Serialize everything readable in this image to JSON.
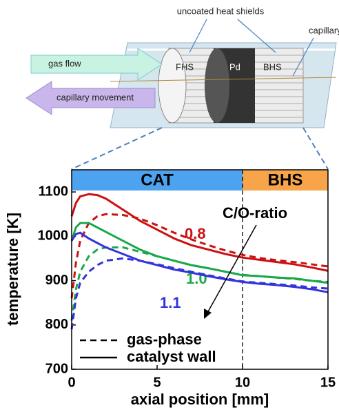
{
  "diagram": {
    "top_label": "uncoated heat shields",
    "tube_label": "capillary",
    "flow_label": "gas flow",
    "movement_label": "capillary movement",
    "front_shield": "FHS",
    "catalyst": "Pd",
    "back_shield": "BHS"
  },
  "chart_data": {
    "type": "line",
    "xlabel": "axial position [mm]",
    "ylabel": "temperature [K]",
    "x": [
      0,
      0.25,
      0.5,
      1,
      1.5,
      2,
      3,
      4,
      5,
      6,
      7,
      8,
      9,
      10,
      11,
      12,
      13,
      14,
      15
    ],
    "series": [
      {
        "label": "0.8",
        "color": "#cc1111",
        "style": "solid",
        "values": [
          1045,
          1075,
          1090,
          1095,
          1093,
          1085,
          1060,
          1035,
          1015,
          995,
          980,
          970,
          960,
          952,
          947,
          942,
          937,
          930,
          922
        ]
      },
      {
        "color": "#cc1111",
        "style": "dashed",
        "values": [
          860,
          940,
          990,
          1030,
          1045,
          1050,
          1048,
          1040,
          1025,
          1008,
          993,
          980,
          968,
          958,
          951,
          946,
          942,
          937,
          932
        ]
      },
      {
        "label": "1.0",
        "color": "#1aa84a",
        "style": "solid",
        "values": [
          990,
          1020,
          1030,
          1030,
          1020,
          1010,
          990,
          970,
          955,
          945,
          935,
          928,
          920,
          912,
          910,
          907,
          905,
          900,
          895
        ]
      },
      {
        "color": "#1aa84a",
        "style": "dashed",
        "values": [
          810,
          880,
          920,
          955,
          970,
          975,
          975,
          965,
          955,
          945,
          935,
          928,
          920,
          913,
          910,
          907,
          904,
          900,
          897
        ]
      },
      {
        "label": "1.1",
        "color": "#3333dd",
        "style": "solid",
        "values": [
          990,
          1005,
          1008,
          995,
          985,
          975,
          960,
          945,
          935,
          925,
          918,
          910,
          903,
          897,
          893,
          890,
          886,
          881,
          874
        ]
      },
      {
        "color": "#3333dd",
        "style": "dashed",
        "values": [
          790,
          860,
          895,
          920,
          935,
          945,
          950,
          945,
          937,
          928,
          920,
          912,
          905,
          898,
          895,
          892,
          889,
          885,
          882
        ]
      }
    ],
    "regions": [
      {
        "label": "CAT",
        "start": 0,
        "end": 10,
        "color": "#4da3f0"
      },
      {
        "label": "BHS",
        "start": 10,
        "end": 15,
        "color": "#f7a44a"
      }
    ],
    "vline": 10,
    "annotation": "C/O-ratio",
    "line_styles": [
      {
        "style": "dashed",
        "label": "gas-phase"
      },
      {
        "style": "solid",
        "label": "catalyst wall"
      }
    ],
    "xlim": [
      0,
      15
    ],
    "xticks": [
      0,
      5,
      10,
      15
    ],
    "ylim": [
      700,
      1150
    ],
    "yticks": [
      700,
      800,
      900,
      1000,
      1100
    ]
  }
}
